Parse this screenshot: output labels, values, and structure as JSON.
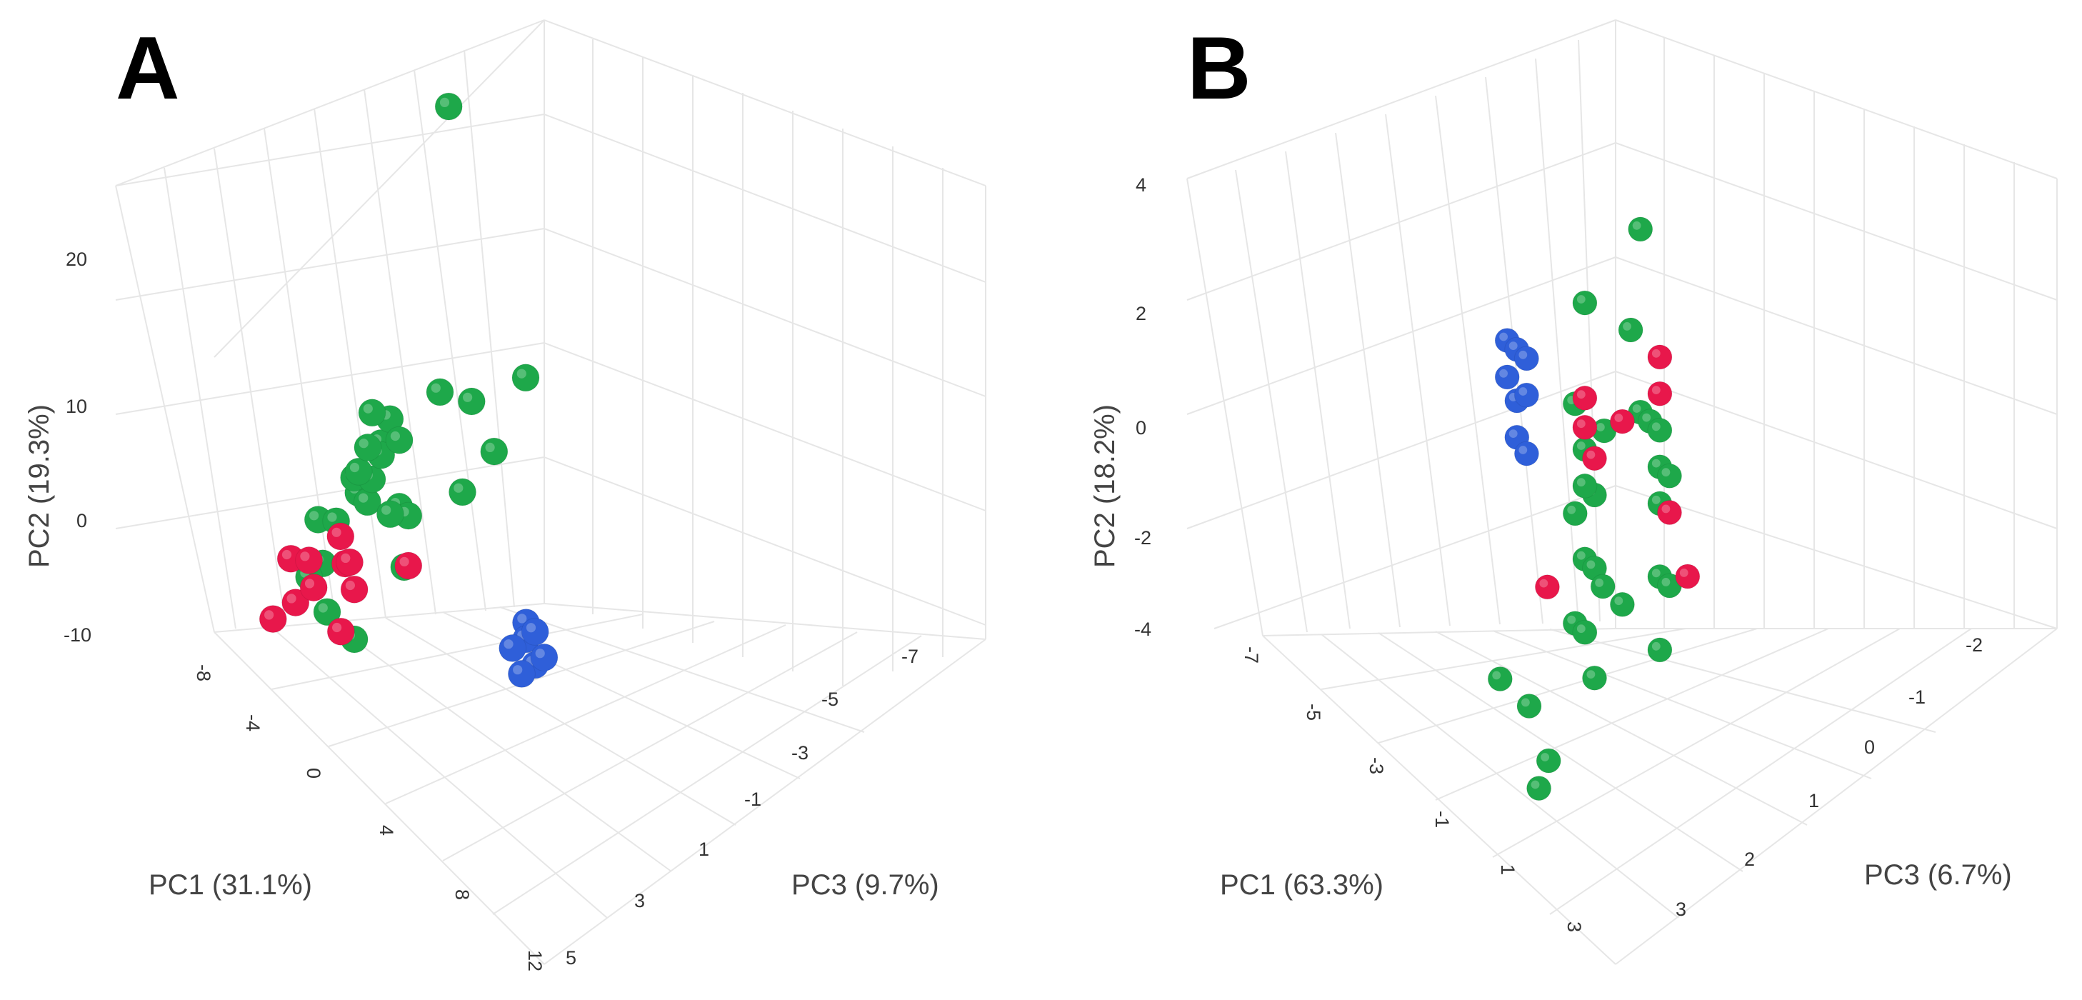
{
  "chart_data": [
    {
      "type": "scatter",
      "title": "A",
      "xlabel": "PC1 (31.1%)",
      "ylabel": "PC2 (19.3%)",
      "zlabel": "PC3 (9.7%)",
      "xticks": [
        "-8",
        "-4",
        "0",
        "4",
        "8",
        "12"
      ],
      "yticks": [
        "-10",
        "0",
        "10",
        "20"
      ],
      "zticks": [
        "-7",
        "-5",
        "-3",
        "-1",
        "1",
        "3",
        "5"
      ],
      "xlim": [
        -8,
        12
      ],
      "ylim": [
        -10,
        25
      ],
      "zlim": [
        5,
        -7
      ],
      "series": [
        {
          "name": "green",
          "color": "#1ea84a",
          "points": [
            [
              -7,
              2,
              -2
            ],
            [
              -7,
              -1,
              -1
            ],
            [
              -6,
              4,
              -2
            ],
            [
              -6,
              -1,
              -1
            ],
            [
              -5,
              1,
              0
            ],
            [
              -4,
              -1,
              2
            ],
            [
              -3,
              2,
              0
            ],
            [
              -2,
              3,
              1
            ],
            [
              -2,
              4,
              0
            ],
            [
              -3,
              6,
              0
            ],
            [
              -2,
              0,
              2
            ],
            [
              -1,
              5,
              1
            ],
            [
              0,
              2,
              0
            ],
            [
              0,
              6,
              0
            ],
            [
              -1,
              -2,
              3
            ],
            [
              1,
              2,
              0
            ],
            [
              2,
              4,
              -2
            ],
            [
              2,
              10,
              -1
            ],
            [
              3,
              10,
              -2
            ],
            [
              3,
              7,
              -3
            ],
            [
              3,
              0,
              1
            ],
            [
              -3,
              -6,
              2
            ],
            [
              -5,
              -5,
              2
            ],
            [
              0,
              -6,
              2
            ],
            [
              -1,
              1,
              0
            ],
            [
              4,
              12,
              -4
            ],
            [
              -2,
              25,
              -3
            ]
          ]
        },
        {
          "name": "red",
          "color": "#e8174b",
          "points": [
            [
              -7,
              -5,
              2
            ],
            [
              -5,
              -4,
              2
            ],
            [
              -4,
              -6,
              3
            ],
            [
              -2,
              -4,
              3
            ],
            [
              -1,
              -2,
              2
            ],
            [
              0,
              -3,
              2
            ],
            [
              1,
              -1,
              0
            ],
            [
              1,
              -5,
              3
            ],
            [
              -4,
              -7,
              4
            ],
            [
              -3,
              -3,
              1
            ],
            [
              -4,
              -2,
              1
            ]
          ]
        },
        {
          "name": "blue",
          "color": "#2f5fd9",
          "points": [
            [
              9,
              0,
              -2
            ],
            [
              9,
              -1,
              -2
            ],
            [
              10,
              0,
              -2
            ],
            [
              10,
              -1,
              -1
            ],
            [
              10,
              -2,
              -2
            ],
            [
              11,
              -1,
              -2
            ],
            [
              11,
              -2,
              -1
            ]
          ]
        }
      ]
    },
    {
      "type": "scatter",
      "title": "B",
      "xlabel": "PC1 (63.3%)",
      "ylabel": "PC2 (18.2%)",
      "zlabel": "PC3 (6.7%)",
      "xticks": [
        "-7",
        "-5",
        "-3",
        "-1",
        "1",
        "3"
      ],
      "yticks": [
        "-4",
        "-2",
        "0",
        "2",
        "4"
      ],
      "zticks": [
        "-2",
        "-1",
        "0",
        "1",
        "2",
        "3"
      ],
      "xlim": [
        -7,
        3
      ],
      "ylim": [
        -4,
        4
      ],
      "zlim": [
        3,
        -2
      ],
      "series": [
        {
          "name": "green",
          "color": "#1ea84a",
          "points": [
            [
              1,
              3.5,
              -1
            ],
            [
              1,
              2.5,
              0
            ],
            [
              0.5,
              2,
              -1
            ],
            [
              1,
              1,
              -1
            ],
            [
              1.5,
              1,
              -1
            ],
            [
              2,
              1,
              -1
            ],
            [
              1,
              0.5,
              0
            ],
            [
              1.5,
              0,
              0
            ],
            [
              2,
              0,
              -1
            ],
            [
              0.5,
              -0.5,
              0
            ],
            [
              1,
              -1,
              0
            ],
            [
              1.5,
              -1,
              0
            ],
            [
              2,
              -1,
              -1
            ],
            [
              0.5,
              -2,
              0
            ],
            [
              1,
              -2,
              0
            ],
            [
              1.5,
              -2.5,
              0
            ],
            [
              2,
              -2,
              -1
            ],
            [
              1.5,
              -1.5,
              -0.5
            ],
            [
              2,
              1,
              0
            ],
            [
              0.5,
              -1.5,
              -0.5
            ],
            [
              2.5,
              -1,
              -1
            ],
            [
              1,
              -3,
              1
            ],
            [
              -0.5,
              -3,
              1
            ],
            [
              2,
              -3.5,
              1
            ],
            [
              1.5,
              -4,
              1
            ],
            [
              2,
              0.5,
              -1
            ],
            [
              1,
              0,
              0
            ],
            [
              0.5,
              1,
              0
            ],
            [
              2.5,
              0.5,
              -1
            ]
          ]
        },
        {
          "name": "red",
          "color": "#e8174b",
          "points": [
            [
              2,
              2,
              -1
            ],
            [
              2,
              1.5,
              -1
            ],
            [
              1.5,
              1,
              -0.5
            ],
            [
              1,
              0.8,
              0
            ],
            [
              2.5,
              0,
              -1
            ],
            [
              2,
              -1,
              -1.5
            ],
            [
              0.5,
              -1.5,
              0.5
            ],
            [
              1.5,
              0.5,
              0
            ],
            [
              1,
              1.2,
              0
            ]
          ]
        },
        {
          "name": "blue",
          "color": "#2f5fd9",
          "points": [
            [
              -3,
              1,
              0
            ],
            [
              -3,
              0.5,
              0
            ],
            [
              -2.5,
              1,
              0
            ],
            [
              -2.5,
              0.3,
              0
            ],
            [
              -2,
              1,
              0
            ],
            [
              -2,
              0.5,
              0
            ],
            [
              -2.5,
              -0.2,
              0
            ],
            [
              -2,
              -0.3,
              0
            ]
          ]
        }
      ]
    }
  ]
}
